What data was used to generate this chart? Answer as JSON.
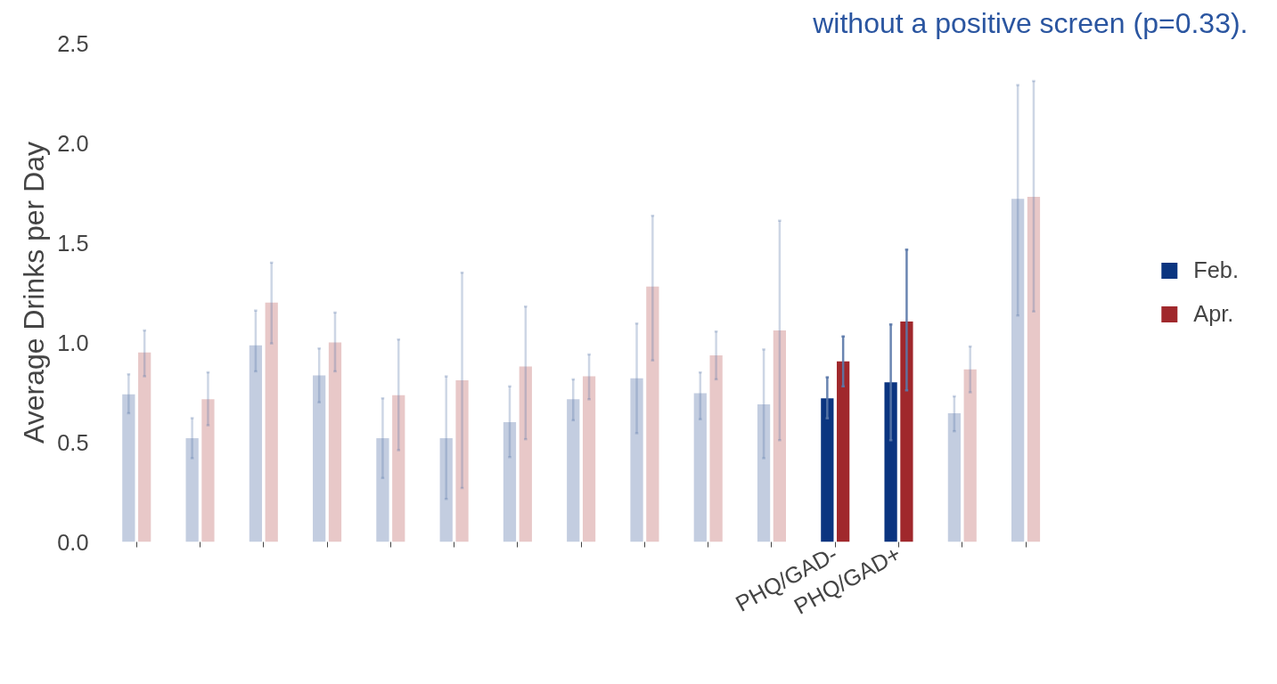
{
  "chart_data": {
    "type": "bar",
    "title": "without a positive screen (p=0.33).",
    "ylabel": "Average Drinks per Day",
    "categories": [
      null,
      null,
      null,
      null,
      null,
      null,
      null,
      null,
      null,
      null,
      null,
      "PHQ/GAD-",
      "PHQ/GAD+",
      null,
      null
    ],
    "series": [
      {
        "name": "Feb.",
        "color": "#0b3580",
        "colors": [
          "#c3cde0",
          "#c3cde0",
          "#c3cde0",
          "#c3cde0",
          "#c3cde0",
          "#c3cde0",
          "#c3cde0",
          "#c3cde0",
          "#c3cde0",
          "#c3cde0",
          "#c3cde0",
          "#0b3580",
          "#0b3580",
          "#c3cde0",
          "#c3cde0"
        ],
        "values": [
          0.74,
          0.52,
          0.985,
          0.835,
          0.52,
          0.52,
          0.6,
          0.715,
          0.82,
          0.745,
          0.69,
          0.72,
          0.8,
          0.645,
          1.72
        ],
        "errors": [
          [
            0.645,
            0.84
          ],
          [
            0.42,
            0.62
          ],
          [
            0.855,
            1.16
          ],
          [
            0.7,
            0.97
          ],
          [
            0.32,
            0.72
          ],
          [
            0.215,
            0.83
          ],
          [
            0.425,
            0.78
          ],
          [
            0.61,
            0.815
          ],
          [
            0.545,
            1.095
          ],
          [
            0.615,
            0.85
          ],
          [
            0.42,
            0.965
          ],
          [
            0.62,
            0.825
          ],
          [
            0.51,
            1.09
          ],
          [
            0.555,
            0.73
          ],
          [
            1.135,
            2.29
          ]
        ]
      },
      {
        "name": "Apr.",
        "color": "#a0282c",
        "colors": [
          "#e8c8c8",
          "#e8c8c8",
          "#e8c8c8",
          "#e8c8c8",
          "#e8c8c8",
          "#e8c8c8",
          "#e8c8c8",
          "#e8c8c8",
          "#e8c8c8",
          "#e8c8c8",
          "#e8c8c8",
          "#a0282c",
          "#a0282c",
          "#e8c8c8",
          "#e8c8c8"
        ],
        "values": [
          0.95,
          0.715,
          1.2,
          1.0,
          0.735,
          0.81,
          0.88,
          0.83,
          1.28,
          0.935,
          1.06,
          0.905,
          1.105,
          0.865,
          1.73
        ],
        "errors": [
          [
            0.83,
            1.06
          ],
          [
            0.585,
            0.85
          ],
          [
            0.995,
            1.4
          ],
          [
            0.855,
            1.15
          ],
          [
            0.46,
            1.015
          ],
          [
            0.27,
            1.35
          ],
          [
            0.515,
            1.18
          ],
          [
            0.715,
            0.94
          ],
          [
            0.91,
            1.635
          ],
          [
            0.815,
            1.055
          ],
          [
            0.51,
            1.61
          ],
          [
            0.78,
            1.03
          ],
          [
            0.76,
            1.465
          ],
          [
            0.75,
            0.98
          ],
          [
            1.155,
            2.31
          ]
        ]
      }
    ],
    "ylim": [
      0,
      2.5
    ],
    "yticks": [
      {
        "value": 0,
        "label": "0.0"
      },
      0.5,
      {
        "value": 1,
        "label": "1.0"
      },
      1.5,
      {
        "value": 2,
        "label": "2.0"
      },
      2.5
    ],
    "grid": false,
    "legend": "right"
  }
}
